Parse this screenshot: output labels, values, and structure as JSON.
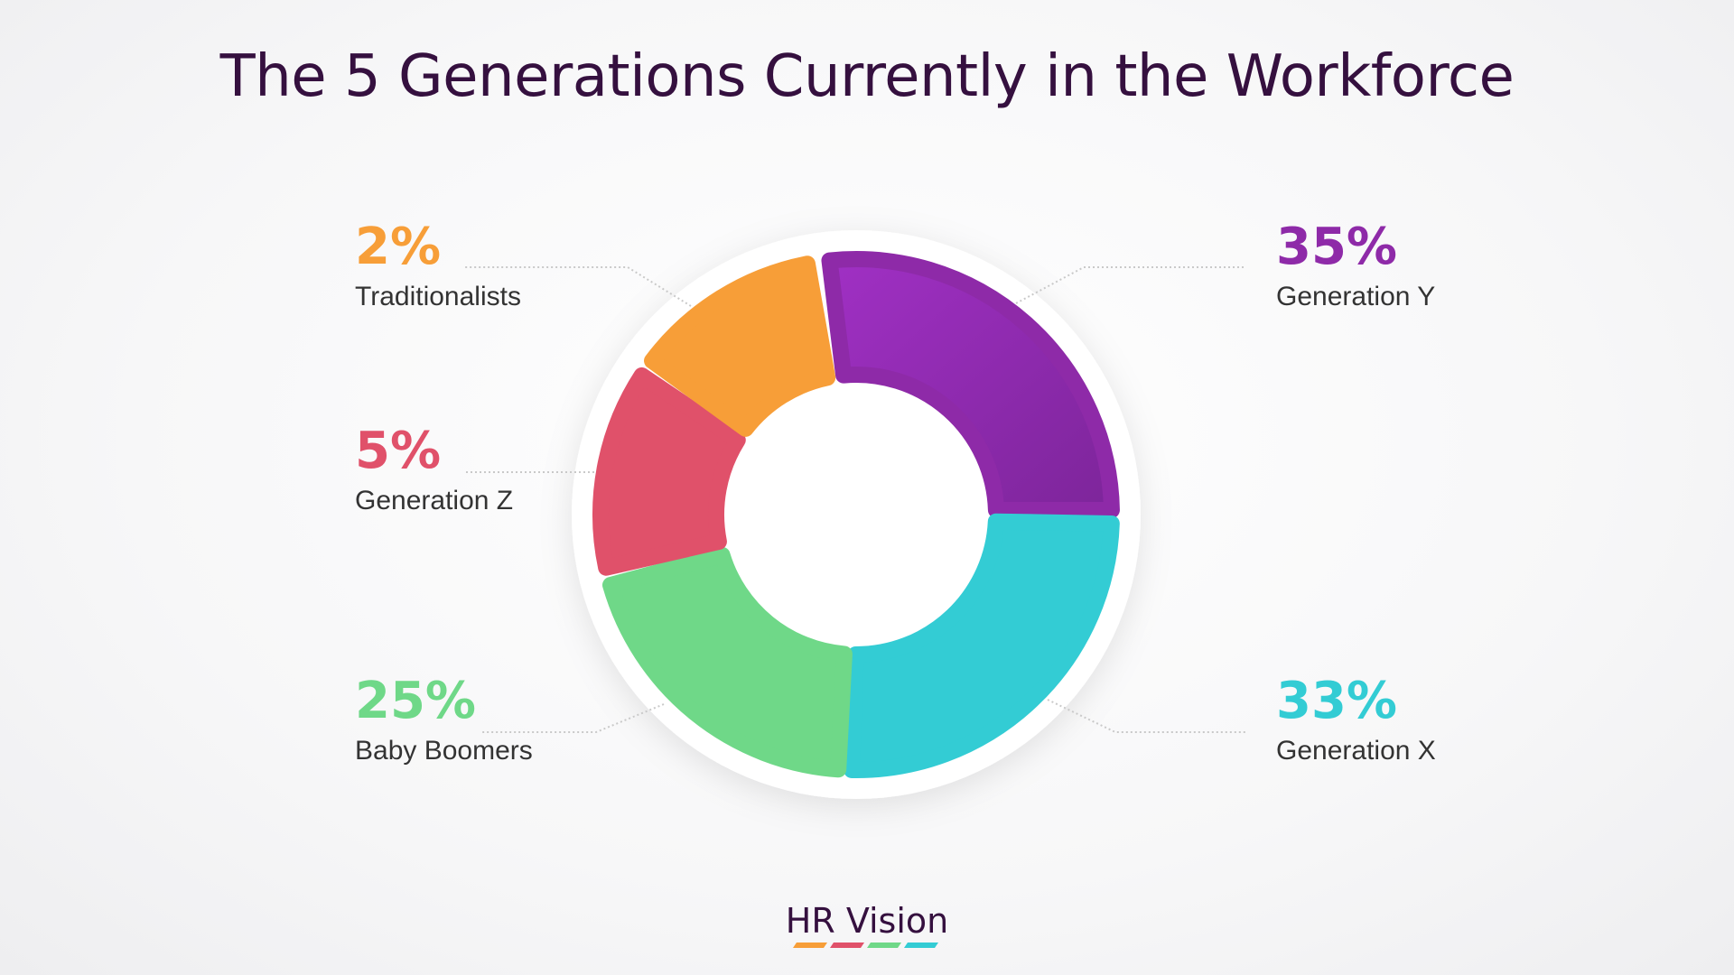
{
  "chart_data": {
    "type": "pie",
    "title": "The 5 Generations Currently in the Workforce",
    "donut": true,
    "legend": "none",
    "slices": [
      {
        "label": "Generation Y",
        "value": 35,
        "pct_label": "35%",
        "color": "#8e2aa8",
        "color_light": "#9e30c0"
      },
      {
        "label": "Generation X",
        "value": 33,
        "pct_label": "33%",
        "color": "#33ccd4",
        "color_light": "#33ccd4"
      },
      {
        "label": "Baby Boomers",
        "value": 25,
        "pct_label": "25%",
        "color": "#6fd888",
        "color_light": "#6fd888"
      },
      {
        "label": "Generation Z",
        "value": 5,
        "pct_label": "5%",
        "color": "#e0516a",
        "color_light": "#e0516a"
      },
      {
        "label": "Traditionalists",
        "value": 2,
        "pct_label": "2%",
        "color": "#f79e38",
        "color_light": "#f79e38"
      }
    ]
  },
  "brand": {
    "name": "HR Vision",
    "bar_colors": [
      "#f79e38",
      "#e0516a",
      "#6fd888",
      "#33ccd4"
    ]
  }
}
